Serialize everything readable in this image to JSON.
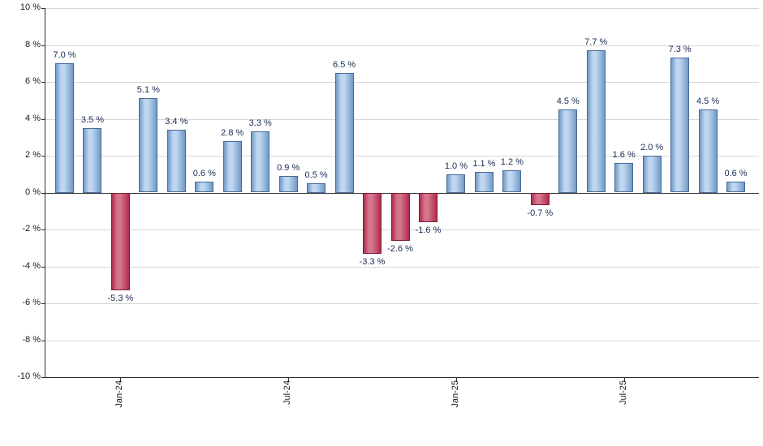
{
  "chart_data": {
    "type": "bar",
    "title": "",
    "xlabel": "",
    "ylabel": "",
    "ylim": [
      -10,
      10
    ],
    "grid": true,
    "legend": null,
    "y_ticks": [
      {
        "value": 10,
        "label": "10 %"
      },
      {
        "value": 8,
        "label": "8 %"
      },
      {
        "value": 6,
        "label": "6 %"
      },
      {
        "value": 4,
        "label": "4 %"
      },
      {
        "value": 2,
        "label": "2 %"
      },
      {
        "value": 0,
        "label": "0 %"
      },
      {
        "value": -2,
        "label": "-2 %"
      },
      {
        "value": -4,
        "label": "-4 %"
      },
      {
        "value": -6,
        "label": "-6 %"
      },
      {
        "value": -8,
        "label": "-8 %"
      },
      {
        "value": -10,
        "label": "-10 %"
      }
    ],
    "x_ticks": [
      {
        "label": "Jan-24",
        "bar_index": 2
      },
      {
        "label": "Jul-24",
        "bar_index": 8
      },
      {
        "label": "Jan-25",
        "bar_index": 14
      },
      {
        "label": "Jul-25",
        "bar_index": 20
      }
    ],
    "series": [
      {
        "values": [
          7.0,
          3.5,
          -5.3,
          5.1,
          3.4,
          0.6,
          2.8,
          3.3,
          0.9,
          0.5,
          6.5,
          -3.3,
          -2.6,
          -1.6,
          1.0,
          1.1,
          1.2,
          -0.7,
          4.5,
          7.7,
          1.6,
          2.0,
          7.3,
          4.5,
          0.6
        ],
        "labels": [
          "7.0 %",
          "3.5 %",
          "-5.3 %",
          "5.1 %",
          "3.4 %",
          "0.6 %",
          "2.8 %",
          "3.3 %",
          "0.9 %",
          "0.5 %",
          "6.5 %",
          "-3.3 %",
          "-2.6 %",
          "-1.6 %",
          "1.0 %",
          "1.1 %",
          "1.2 %",
          "-0.7 %",
          "4.5 %",
          "7.7 %",
          "1.6 %",
          "2.0 %",
          "7.3 %",
          "4.5 %",
          "0.6 %"
        ]
      }
    ],
    "colors": {
      "positive": "#7199c6",
      "positive_light": "#bed6f0",
      "positive_border": "#466a99",
      "negative": "#b02a4e",
      "negative_light": "#d4758c",
      "negative_border": "#7d1d38",
      "grid": "#d6d6d6",
      "zero_line": "#3c3c3c",
      "axis": "#2e2e2e",
      "tick_color": "#1a1a1a",
      "value_label": "#1a2c54"
    }
  }
}
